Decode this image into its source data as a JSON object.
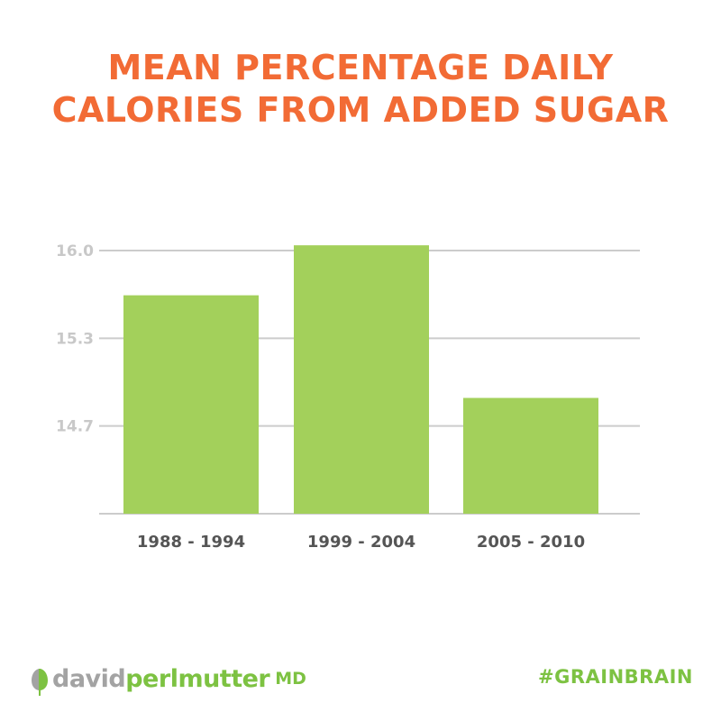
{
  "chart_data": {
    "type": "bar",
    "title_lines": [
      "MEAN PERCENTAGE DAILY",
      "CALORIES FROM ADDED SUGAR"
    ],
    "categories": [
      "1988 - 1994",
      "1999 - 2004",
      "2005 - 2010"
    ],
    "values": [
      15.66,
      16.04,
      14.88
    ],
    "ylim": [
      14.0,
      16.0
    ],
    "yticks": [
      {
        "value": 16.0,
        "label": "16.0"
      },
      {
        "value": 15.333,
        "label": "15.3"
      },
      {
        "value": 14.667,
        "label": "14.7"
      }
    ],
    "xlabel": "",
    "ylabel": "",
    "grid": true,
    "colors": {
      "bar": "#a3d05b",
      "title": "#f26b35",
      "grid": "#cccccc",
      "tick_label": "#c8c8c8",
      "category_label": "#555555"
    }
  },
  "footer": {
    "logo_part1": "david",
    "logo_part2": "perlmutter",
    "logo_suffix": "MD",
    "hashtag": "#GRAINBRAIN"
  }
}
